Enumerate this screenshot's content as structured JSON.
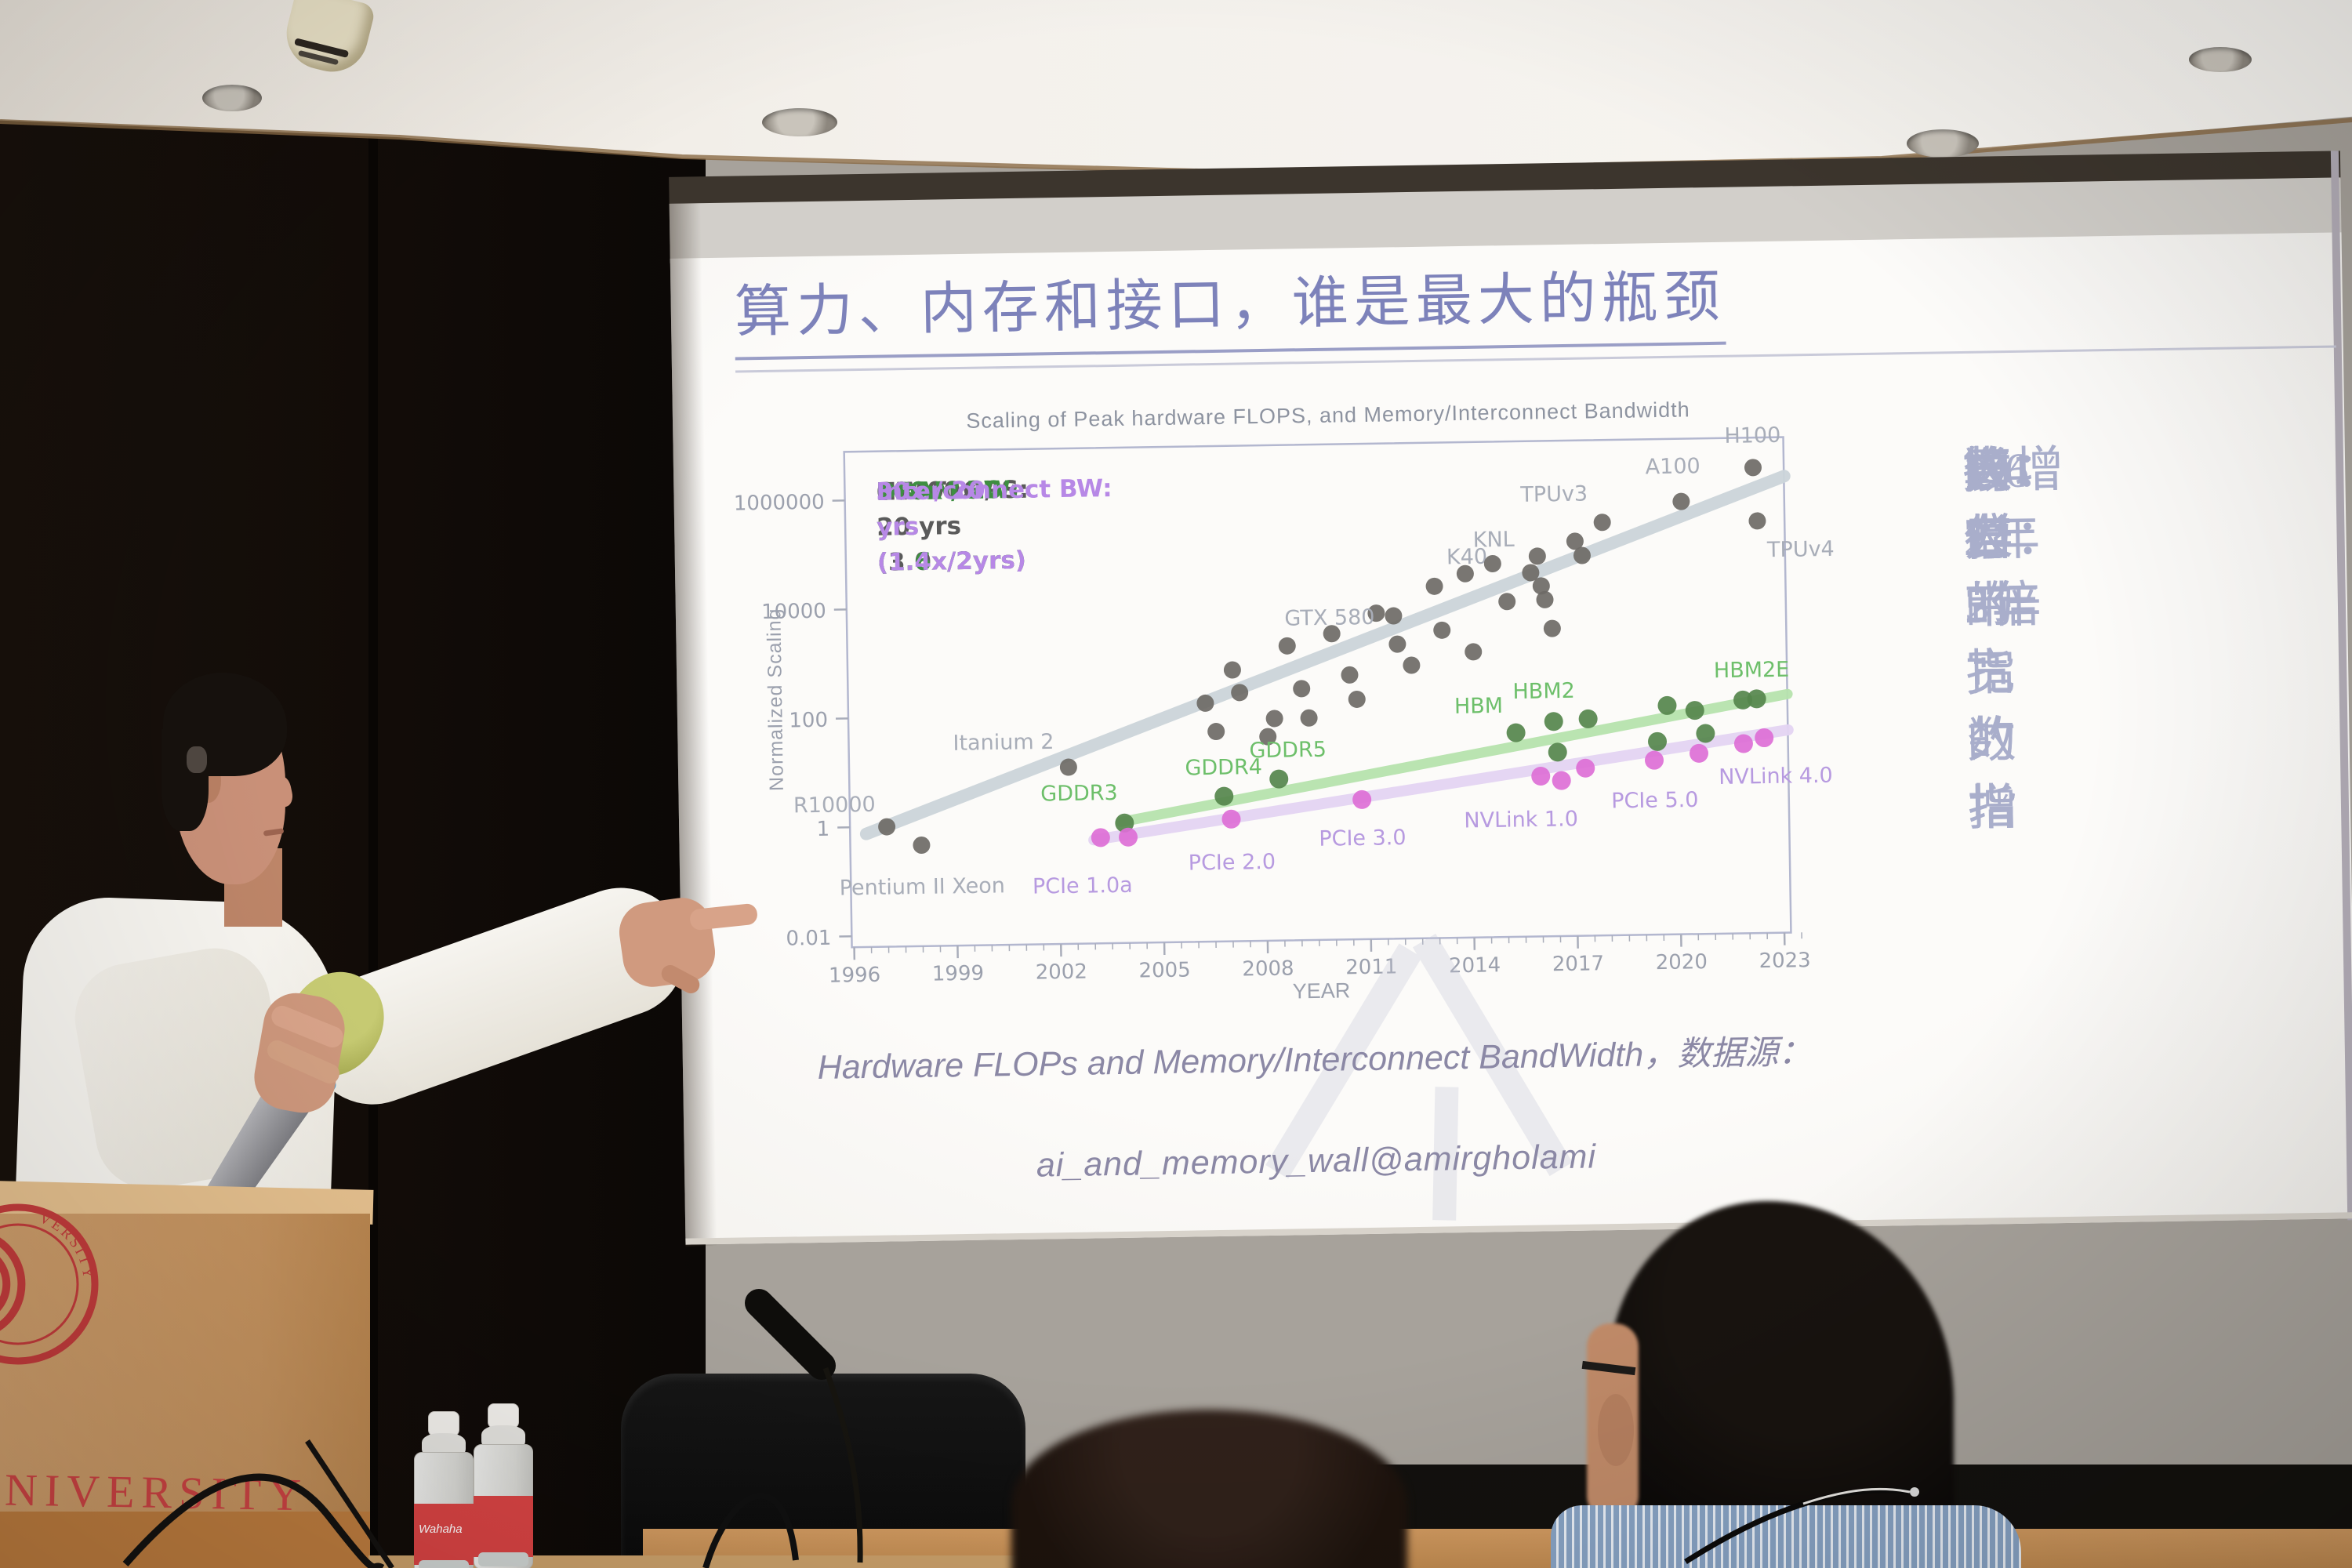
{
  "scene": {
    "slide": {
      "title": "算力、内存和接口，谁是最大的瓶颈",
      "caption_line1": "Hardware FLOPs and Memory/Interconnect BandWidth，数据源：",
      "caption_line2": "ai_and_memory_wall@amirgholami",
      "right_blocks": [
        {
          "lines": [
            "算力的指数增",
            "长：2年3倍"
          ]
        },
        {
          "lines": [
            "内存带宽的指",
            "数增长：2年",
            "1.6倍"
          ]
        },
        {
          "lines": [
            "接口带宽的指",
            "数增长：2年",
            "1.4倍"
          ]
        }
      ],
      "accent_color": "#7d82ba",
      "right_text_color": "#a9aecb"
    },
    "podium": {
      "university_text": "NIVERSITY",
      "seal_text": "VERSITY",
      "seal_number": "8",
      "seal_color": "#c23b3b",
      "text_color": "#cc4343"
    },
    "bottle_label": "Wahaha"
  },
  "chart_data": {
    "type": "scatter",
    "title": "Scaling of Peak hardware FLOPS, and Memory/Interconnect Bandwidth",
    "xlabel": "YEAR",
    "ylabel": "Normalized Scaling",
    "grid": false,
    "legend_position": "top-left",
    "xlim": [
      1996,
      2023.5
    ],
    "ylim": [
      0.005,
      7000000
    ],
    "x_ticks": [
      1996,
      1999,
      2002,
      2005,
      2008,
      2011,
      2014,
      2017,
      2020,
      2023
    ],
    "y_ticks": [
      {
        "v": 1000000,
        "label": "1000000"
      },
      {
        "v": 10000,
        "label": "10000"
      },
      {
        "v": 100,
        "label": "100"
      },
      {
        "v": 1,
        "label": "1"
      },
      {
        "v": 0.01,
        "label": "0.01"
      }
    ],
    "legend": [
      {
        "label": "HW FLOPS:",
        "value": "60000x / 20 yrs (3.0x/2yrs)",
        "color": "#5a5a5a"
      },
      {
        "label": "DRAM BW:",
        "value": "100x / 20 yrs (1.6x/2yrs)",
        "color": "#3e8e41"
      },
      {
        "label": "Interconnect BW:",
        "value": "30x / 20 yrs (1.4x/2yrs)",
        "color": "#b788e6"
      }
    ],
    "series": [
      {
        "name": "HW FLOPS",
        "dot_color": "#6e6a66",
        "dot_r": 11,
        "line_color": "#ccd5da",
        "line_width": 16,
        "label_color": "#a8adb8",
        "trend": {
          "x1": 1996.4,
          "v1": 0.75,
          "x2": 2023.2,
          "v2": 1500000
        },
        "points": [
          {
            "x": 1997.0,
            "v": 1.0,
            "label": "R10000",
            "lx": -14,
            "ly": -20,
            "anchor": "end"
          },
          {
            "x": 1998.0,
            "v": 0.45,
            "label": "Pentium II Xeon",
            "lx": 0,
            "ly": 62,
            "anchor": "middle"
          },
          {
            "x": 2002.3,
            "v": 11,
            "label": "Itanium 2",
            "lx": -18,
            "ly": -24,
            "anchor": "end"
          },
          {
            "x": 2006.3,
            "v": 150
          },
          {
            "x": 2006.6,
            "v": 45
          },
          {
            "x": 2007.1,
            "v": 600
          },
          {
            "x": 2007.3,
            "v": 230
          },
          {
            "x": 2008.1,
            "v": 35
          },
          {
            "x": 2008.3,
            "v": 75
          },
          {
            "x": 2008.7,
            "v": 1600
          },
          {
            "x": 2009.1,
            "v": 260
          },
          {
            "x": 2009.3,
            "v": 75
          },
          {
            "x": 2010.0,
            "v": 2600
          },
          {
            "x": 2010.5,
            "v": 450
          },
          {
            "x": 2010.7,
            "v": 160
          },
          {
            "x": 2011.3,
            "v": 6000
          },
          {
            "x": 2011.8,
            "v": 5300,
            "label": "GTX 580",
            "lx": -24,
            "ly": 10,
            "anchor": "end"
          },
          {
            "x": 2011.9,
            "v": 1600
          },
          {
            "x": 2012.3,
            "v": 650
          },
          {
            "x": 2013.0,
            "v": 18000,
            "label": "K40",
            "lx": 16,
            "ly": -28,
            "anchor": "start"
          },
          {
            "x": 2013.2,
            "v": 2800
          },
          {
            "x": 2013.9,
            "v": 30000
          },
          {
            "x": 2014.1,
            "v": 1100
          },
          {
            "x": 2014.7,
            "v": 45000
          },
          {
            "x": 2015.1,
            "v": 9000
          },
          {
            "x": 2015.8,
            "v": 30000,
            "label": "KNL",
            "lx": -20,
            "ly": -34,
            "anchor": "end"
          },
          {
            "x": 2016.0,
            "v": 60000
          },
          {
            "x": 2016.1,
            "v": 17000
          },
          {
            "x": 2016.2,
            "v": 9500
          },
          {
            "x": 2016.4,
            "v": 2800
          },
          {
            "x": 2017.1,
            "v": 110000
          },
          {
            "x": 2017.3,
            "v": 60000
          },
          {
            "x": 2017.9,
            "v": 240000,
            "label": "TPUv3",
            "lx": -18,
            "ly": -28,
            "anchor": "end"
          },
          {
            "x": 2020.2,
            "v": 550000,
            "label": "A100",
            "lx": -10,
            "ly": -36,
            "anchor": "middle"
          },
          {
            "x": 2022.3,
            "v": 2200000,
            "label": "H100",
            "lx": 0,
            "ly": -32,
            "anchor": "middle"
          },
          {
            "x": 2022.4,
            "v": 230000,
            "label": "TPUv4",
            "lx": 12,
            "ly": 46,
            "anchor": "start"
          }
        ]
      },
      {
        "name": "DRAM BW",
        "dot_color": "#55854c",
        "dot_r": 12,
        "line_color": "#b7e3ae",
        "line_width": 13,
        "label_color": "#6dbf6a",
        "trend": {
          "x1": 2003.8,
          "v1": 1.05,
          "x2": 2023.2,
          "v2": 150
        },
        "points": [
          {
            "x": 2003.9,
            "v": 1.0,
            "label": "GDDR3",
            "lx": -8,
            "ly": -30,
            "anchor": "end"
          },
          {
            "x": 2006.8,
            "v": 2.9,
            "label": "GDDR4",
            "lx": 0,
            "ly": -28,
            "anchor": "middle"
          },
          {
            "x": 2008.4,
            "v": 5.8,
            "label": "GDDR5",
            "lx": 12,
            "ly": -28,
            "anchor": "middle"
          },
          {
            "x": 2015.3,
            "v": 35,
            "label": "HBM",
            "lx": -16,
            "ly": -26,
            "anchor": "end"
          },
          {
            "x": 2016.4,
            "v": 55,
            "label": "HBM2",
            "lx": -12,
            "ly": -30,
            "anchor": "middle"
          },
          {
            "x": 2016.5,
            "v": 15
          },
          {
            "x": 2017.4,
            "v": 60
          },
          {
            "x": 2019.4,
            "v": 22
          },
          {
            "x": 2019.7,
            "v": 100
          },
          {
            "x": 2020.5,
            "v": 80
          },
          {
            "x": 2020.8,
            "v": 30
          },
          {
            "x": 2021.9,
            "v": 120
          },
          {
            "x": 2022.3,
            "v": 125,
            "label": "HBM2E",
            "lx": -6,
            "ly": -28,
            "anchor": "middle"
          }
        ]
      },
      {
        "name": "Interconnect BW",
        "dot_color": "#dd6fd6",
        "dot_r": 12,
        "line_color": "#e4d5f3",
        "line_width": 14,
        "label_color": "#b79ae0",
        "trend": {
          "x1": 2003.0,
          "v1": 0.5,
          "x2": 2023.2,
          "v2": 33
        },
        "points": [
          {
            "x": 2003.2,
            "v": 0.55,
            "label": "PCIe 1.0a",
            "lx": -24,
            "ly": 70,
            "anchor": "middle"
          },
          {
            "x": 2004.0,
            "v": 0.55
          },
          {
            "x": 2007.0,
            "v": 1.1,
            "label": "PCIe 2.0",
            "lx": 0,
            "ly": 64,
            "anchor": "middle"
          },
          {
            "x": 2010.8,
            "v": 2.3,
            "label": "PCIe 3.0",
            "lx": 0,
            "ly": 58,
            "anchor": "middle"
          },
          {
            "x": 2016.0,
            "v": 5.5,
            "label": "NVLink 1.0",
            "lx": -26,
            "ly": 64,
            "anchor": "middle"
          },
          {
            "x": 2016.6,
            "v": 4.5
          },
          {
            "x": 2017.3,
            "v": 7.5
          },
          {
            "x": 2019.3,
            "v": 10,
            "label": "PCIe 5.0",
            "lx": 0,
            "ly": 60,
            "anchor": "middle"
          },
          {
            "x": 2020.6,
            "v": 13
          },
          {
            "x": 2021.9,
            "v": 19
          },
          {
            "x": 2022.5,
            "v": 24,
            "label": "NVLink 4.0",
            "lx": 14,
            "ly": 58,
            "anchor": "middle"
          }
        ]
      }
    ]
  }
}
